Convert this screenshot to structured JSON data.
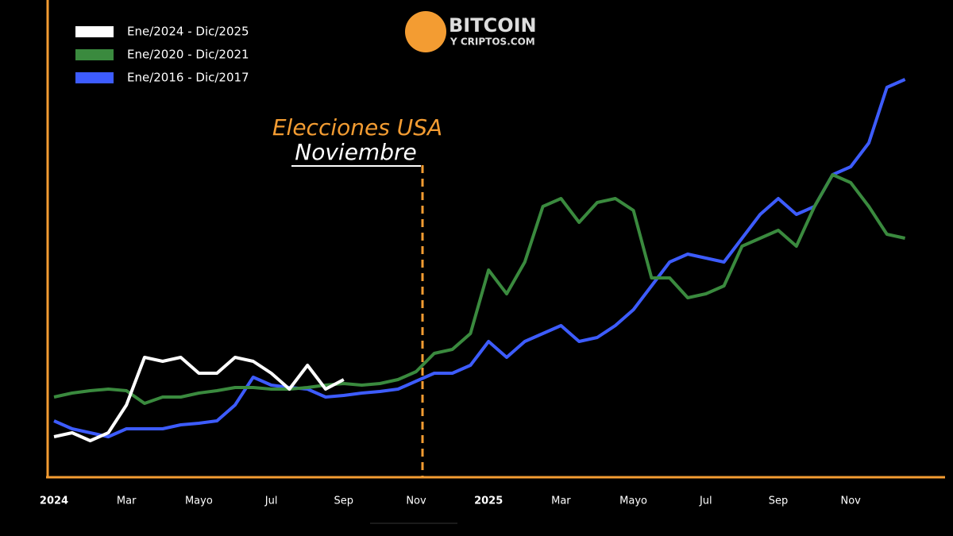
{
  "logo": {
    "name": "BITCOIN",
    "sub": "Y CRIPTOS.COM"
  },
  "chart_data": {
    "type": "line",
    "annotation": "Elecciones USA",
    "annotation_sub": "Noviembre",
    "categories": [
      "2024",
      null,
      null,
      null,
      "Mar",
      null,
      null,
      null,
      "Mayo",
      null,
      null,
      null,
      "Jul",
      null,
      null,
      null,
      "Sep",
      null,
      null,
      null,
      "Nov",
      null,
      null,
      null,
      "2025",
      null,
      null,
      null,
      "Mar",
      null,
      null,
      null,
      "Mayo",
      null,
      null,
      null,
      "Jul",
      null,
      null,
      null,
      "Sep",
      null,
      null,
      null,
      "Nov",
      null,
      null,
      null
    ],
    "ylim": [
      0,
      560
    ],
    "series": [
      {
        "name": "Ene/2024 - Dic/2025",
        "color": "#ffffff",
        "values": [
          50,
          55,
          45,
          55,
          90,
          150,
          145,
          150,
          130,
          130,
          150,
          145,
          130,
          110,
          140,
          110,
          122,
          null,
          null,
          null,
          null,
          null,
          null,
          null,
          null,
          null,
          null,
          null,
          null,
          null,
          null,
          null,
          null,
          null,
          null,
          null,
          null,
          null,
          null,
          null,
          null,
          null,
          null,
          null,
          null,
          null,
          null,
          null
        ]
      },
      {
        "name": "Ene/2020 - Dic/2021",
        "color": "#3a8a3e",
        "values": [
          100,
          105,
          108,
          110,
          108,
          92,
          100,
          100,
          105,
          108,
          112,
          112,
          110,
          110,
          112,
          115,
          117,
          115,
          117,
          122,
          132,
          155,
          160,
          180,
          260,
          230,
          270,
          340,
          350,
          320,
          345,
          350,
          335,
          250,
          250,
          225,
          230,
          240,
          290,
          300,
          310,
          290,
          340,
          380,
          370,
          340,
          305,
          300
        ]
      },
      {
        "name": "Ene/2016 - Dic/2017",
        "color": "#3d5cff",
        "values": [
          70,
          60,
          55,
          50,
          60,
          60,
          60,
          65,
          67,
          70,
          90,
          125,
          115,
          112,
          110,
          100,
          102,
          105,
          107,
          110,
          120,
          130,
          130,
          140,
          170,
          150,
          170,
          180,
          190,
          170,
          175,
          190,
          210,
          240,
          270,
          280,
          275,
          270,
          300,
          330,
          350,
          330,
          340,
          380,
          390,
          420,
          490,
          500
        ]
      }
    ]
  }
}
